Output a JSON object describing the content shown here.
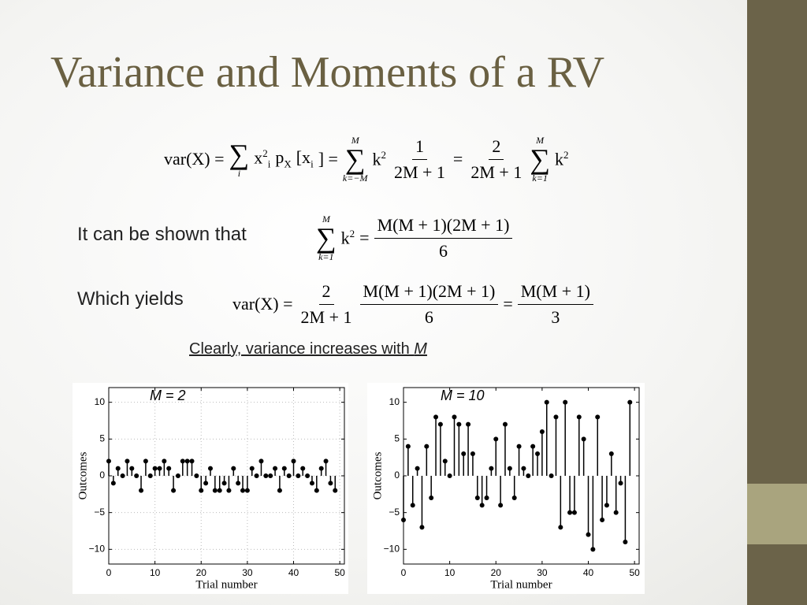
{
  "title": "Variance and Moments of a RV",
  "equation1": [
    {
      "t": "var(X) ="
    },
    {
      "sum": "∑",
      "bot": "i"
    },
    {
      "t": "x",
      "sup": "2",
      "sub": "i"
    },
    {
      "t": "p",
      "sub": "X"
    },
    {
      "t": "[x",
      "sub": "i"
    },
    {
      "t": "] ="
    },
    {
      "sum": "∑",
      "top": "M",
      "bot": "k=−M"
    },
    {
      "t": "k",
      "sup": "2"
    },
    {
      "frac": [
        "1",
        "2M + 1"
      ]
    },
    {
      "t": "="
    },
    {
      "frac": [
        "2",
        "2M + 1"
      ]
    },
    {
      "sum": "∑",
      "top": "M",
      "bot": "k=1"
    },
    {
      "t": "k",
      "sup": "2"
    }
  ],
  "label2": "It can be shown that",
  "equation2": [
    {
      "sum": "∑",
      "top": "M",
      "bot": "k=1"
    },
    {
      "t": "k",
      "sup": "2"
    },
    {
      "t": "="
    },
    {
      "frac": [
        "M(M + 1)(2M + 1)",
        "6"
      ]
    }
  ],
  "label3": "Which yields",
  "equation3": [
    {
      "t": "var(X) ="
    },
    {
      "frac": [
        "2",
        "2M + 1"
      ]
    },
    {
      "frac": [
        "M(M + 1)(2M + 1)",
        "6"
      ]
    },
    {
      "t": "="
    },
    {
      "frac": [
        "M(M + 1)",
        "3"
      ]
    }
  ],
  "note": [
    "Clearly, variance increases with ",
    "M"
  ],
  "chart_data": [
    {
      "type": "stem",
      "title": "M = 2",
      "xlabel": "Trial number",
      "ylabel": "Outcomes",
      "color": "#000000",
      "grid": true,
      "x": [
        0,
        1,
        2,
        3,
        4,
        5,
        6,
        7,
        8,
        9,
        10,
        11,
        12,
        13,
        14,
        15,
        16,
        17,
        18,
        19,
        20,
        21,
        22,
        23,
        24,
        25,
        26,
        27,
        28,
        29,
        30,
        31,
        32,
        33,
        34,
        35,
        36,
        37,
        38,
        39,
        40,
        41,
        42,
        43,
        44,
        45,
        46,
        47,
        48,
        49
      ],
      "values": [
        2,
        -1,
        1,
        0,
        2,
        1,
        0,
        -2,
        2,
        0,
        1,
        1,
        2,
        1,
        -2,
        0,
        2,
        2,
        2,
        0,
        -2,
        -1,
        1,
        -2,
        -2,
        -1,
        -2,
        1,
        -1,
        -2,
        -2,
        1,
        0,
        2,
        0,
        0,
        1,
        -2,
        1,
        0,
        2,
        0,
        1,
        0,
        -1,
        -2,
        1,
        2,
        -1,
        -2
      ],
      "xlim": [
        0,
        51
      ],
      "xticks": [
        0,
        10,
        20,
        30,
        40,
        50
      ],
      "ylim": [
        -12,
        12
      ],
      "yticks": [
        {
          "value": -10,
          "label": "−10"
        },
        {
          "value": -5,
          "label": "−5"
        },
        0,
        5,
        10
      ]
    },
    {
      "type": "stem",
      "title": "M = 10",
      "xlabel": "Trial number",
      "ylabel": "Outcomes",
      "color": "#000000",
      "grid": false,
      "x": [
        0,
        1,
        2,
        3,
        4,
        5,
        6,
        7,
        8,
        9,
        10,
        11,
        12,
        13,
        14,
        15,
        16,
        17,
        18,
        19,
        20,
        21,
        22,
        23,
        24,
        25,
        26,
        27,
        28,
        29,
        30,
        31,
        32,
        33,
        34,
        35,
        36,
        37,
        38,
        39,
        40,
        41,
        42,
        43,
        44,
        45,
        46,
        47,
        48,
        49
      ],
      "values": [
        -6,
        4,
        -4,
        1,
        -7,
        4,
        -3,
        8,
        7,
        2,
        0,
        8,
        7,
        3,
        7,
        3,
        -3,
        -4,
        -3,
        1,
        5,
        -4,
        7,
        1,
        -3,
        4,
        1,
        0,
        4,
        3,
        6,
        10,
        0,
        8,
        -7,
        10,
        -5,
        -5,
        8,
        5,
        -8,
        -10,
        8,
        -6,
        -4,
        3,
        -5,
        -1,
        -9,
        10
      ],
      "xlim": [
        0,
        51
      ],
      "xticks": [
        0,
        10,
        20,
        30,
        40,
        50
      ],
      "ylim": [
        -12,
        12
      ],
      "yticks": [
        {
          "value": -10,
          "label": "−10"
        },
        {
          "value": -5,
          "label": "−5"
        },
        0,
        5,
        10
      ]
    }
  ]
}
